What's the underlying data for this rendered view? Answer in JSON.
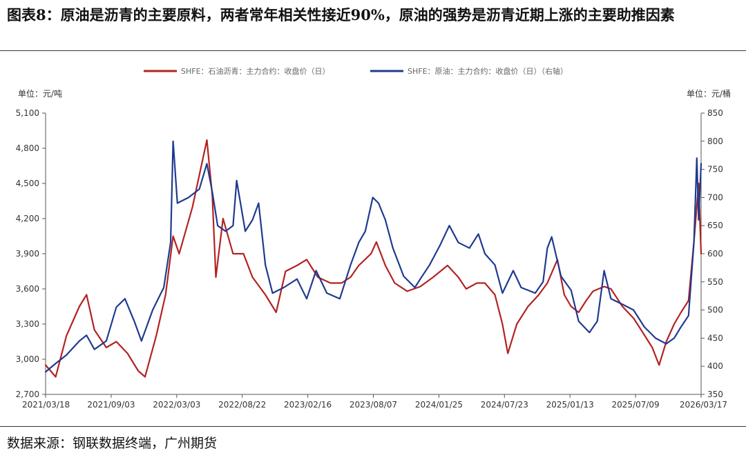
{
  "header": {
    "title": "图表8：原油是沥青的主要原料，两者常年相关性接近90%，原油的强势是沥青近期上涨的主要助推因素"
  },
  "footer": {
    "source": "数据来源：钢联数据终端，广州期货"
  },
  "colors": {
    "asphalt": "#B22222",
    "crude": "#1F3A8F",
    "axis": "#555555"
  },
  "chart_data": {
    "type": "line",
    "title": "",
    "left_axis_unit": "单位：元/吨",
    "right_axis_unit": "单位：元/桶",
    "ylim_left": [
      2700,
      5100
    ],
    "yticks_left": [
      "2,700",
      "3,000",
      "3,300",
      "3,600",
      "3,900",
      "4,200",
      "4,500",
      "4,800",
      "5,100"
    ],
    "ylim_right": [
      350,
      850
    ],
    "yticks_right": [
      "350",
      "400",
      "450",
      "500",
      "550",
      "600",
      "650",
      "700",
      "750",
      "800",
      "850"
    ],
    "xlim": [
      "2021-03-18",
      "2026-03-17"
    ],
    "xticks": [
      "2021/03/18",
      "2021/09/03",
      "2022/03/03",
      "2022/08/22",
      "2023/02/16",
      "2023/08/07",
      "2024/01/25",
      "2024/07/23",
      "2025/01/13",
      "2025/07/09",
      "2026/03/17"
    ],
    "grid": false,
    "legend_position": "top-center",
    "series": [
      {
        "name": "SHFE：石油沥青：主力合约：收盘价（日）",
        "axis": "left",
        "points": [
          [
            "2021-03-18",
            2950
          ],
          [
            "2021-04-15",
            2850
          ],
          [
            "2021-05-15",
            3200
          ],
          [
            "2021-06-20",
            3450
          ],
          [
            "2021-07-10",
            3550
          ],
          [
            "2021-08-01",
            3250
          ],
          [
            "2021-09-03",
            3100
          ],
          [
            "2021-10-01",
            3150
          ],
          [
            "2021-11-01",
            3050
          ],
          [
            "2021-12-01",
            2900
          ],
          [
            "2021-12-20",
            2850
          ],
          [
            "2022-01-20",
            3200
          ],
          [
            "2022-02-15",
            3550
          ],
          [
            "2022-03-08",
            4050
          ],
          [
            "2022-03-25",
            3900
          ],
          [
            "2022-05-01",
            4300
          ],
          [
            "2022-06-10",
            4870
          ],
          [
            "2022-06-25",
            4400
          ],
          [
            "2022-07-05",
            3700
          ],
          [
            "2022-07-25",
            4200
          ],
          [
            "2022-08-22",
            3900
          ],
          [
            "2022-09-20",
            3900
          ],
          [
            "2022-10-15",
            3700
          ],
          [
            "2022-11-20",
            3550
          ],
          [
            "2022-12-20",
            3400
          ],
          [
            "2023-01-15",
            3750
          ],
          [
            "2023-02-16",
            3800
          ],
          [
            "2023-03-15",
            3850
          ],
          [
            "2023-04-15",
            3700
          ],
          [
            "2023-05-20",
            3650
          ],
          [
            "2023-06-20",
            3650
          ],
          [
            "2023-07-15",
            3700
          ],
          [
            "2023-08-07",
            3800
          ],
          [
            "2023-09-10",
            3900
          ],
          [
            "2023-09-25",
            4000
          ],
          [
            "2023-10-20",
            3800
          ],
          [
            "2023-11-15",
            3650
          ],
          [
            "2023-12-20",
            3580
          ],
          [
            "2024-01-25",
            3620
          ],
          [
            "2024-03-01",
            3700
          ],
          [
            "2024-04-10",
            3800
          ],
          [
            "2024-05-10",
            3700
          ],
          [
            "2024-06-01",
            3600
          ],
          [
            "2024-07-01",
            3650
          ],
          [
            "2024-07-23",
            3650
          ],
          [
            "2024-08-20",
            3550
          ],
          [
            "2024-09-10",
            3300
          ],
          [
            "2024-09-25",
            3050
          ],
          [
            "2024-10-20",
            3300
          ],
          [
            "2024-11-20",
            3450
          ],
          [
            "2024-12-20",
            3550
          ],
          [
            "2025-01-13",
            3650
          ],
          [
            "2025-02-10",
            3850
          ],
          [
            "2025-03-01",
            3550
          ],
          [
            "2025-03-20",
            3450
          ],
          [
            "2025-04-10",
            3400
          ],
          [
            "2025-05-01",
            3500
          ],
          [
            "2025-05-20",
            3580
          ],
          [
            "2025-06-20",
            3620
          ],
          [
            "2025-07-09",
            3600
          ],
          [
            "2025-08-10",
            3450
          ],
          [
            "2025-09-10",
            3350
          ],
          [
            "2025-10-01",
            3250
          ],
          [
            "2025-11-01",
            3100
          ],
          [
            "2025-11-20",
            2950
          ],
          [
            "2025-12-10",
            3150
          ],
          [
            "2026-01-01",
            3300
          ],
          [
            "2026-01-20",
            3400
          ],
          [
            "2026-02-10",
            3500
          ],
          [
            "2026-02-25",
            4000
          ],
          [
            "2026-03-10",
            4500
          ],
          [
            "2026-03-17",
            3900
          ]
        ]
      },
      {
        "name": "SHFE：原油：主力合约：收盘价（日）（右轴）",
        "axis": "right",
        "points": [
          [
            "2021-03-18",
            390
          ],
          [
            "2021-04-15",
            405
          ],
          [
            "2021-05-15",
            420
          ],
          [
            "2021-06-20",
            445
          ],
          [
            "2021-07-10",
            455
          ],
          [
            "2021-08-01",
            430
          ],
          [
            "2021-09-03",
            445
          ],
          [
            "2021-10-01",
            505
          ],
          [
            "2021-10-25",
            520
          ],
          [
            "2021-11-20",
            480
          ],
          [
            "2021-12-10",
            445
          ],
          [
            "2022-01-10",
            500
          ],
          [
            "2022-02-10",
            540
          ],
          [
            "2022-03-01",
            620
          ],
          [
            "2022-03-08",
            800
          ],
          [
            "2022-03-20",
            690
          ],
          [
            "2022-04-20",
            700
          ],
          [
            "2022-05-20",
            715
          ],
          [
            "2022-06-10",
            760
          ],
          [
            "2022-06-25",
            710
          ],
          [
            "2022-07-10",
            650
          ],
          [
            "2022-08-01",
            640
          ],
          [
            "2022-08-22",
            650
          ],
          [
            "2022-09-01",
            730
          ],
          [
            "2022-09-25",
            640
          ],
          [
            "2022-10-15",
            660
          ],
          [
            "2022-11-01",
            690
          ],
          [
            "2022-11-20",
            580
          ],
          [
            "2022-12-10",
            530
          ],
          [
            "2023-01-10",
            540
          ],
          [
            "2023-02-16",
            555
          ],
          [
            "2023-03-15",
            520
          ],
          [
            "2023-04-10",
            570
          ],
          [
            "2023-05-10",
            530
          ],
          [
            "2023-06-15",
            520
          ],
          [
            "2023-07-15",
            580
          ],
          [
            "2023-08-07",
            620
          ],
          [
            "2023-08-25",
            640
          ],
          [
            "2023-09-15",
            700
          ],
          [
            "2023-10-01",
            690
          ],
          [
            "2023-10-20",
            660
          ],
          [
            "2023-11-10",
            610
          ],
          [
            "2023-12-10",
            560
          ],
          [
            "2024-01-10",
            540
          ],
          [
            "2024-01-25",
            555
          ],
          [
            "2024-02-20",
            580
          ],
          [
            "2024-03-20",
            615
          ],
          [
            "2024-04-15",
            650
          ],
          [
            "2024-05-10",
            620
          ],
          [
            "2024-06-10",
            610
          ],
          [
            "2024-07-05",
            635
          ],
          [
            "2024-07-23",
            600
          ],
          [
            "2024-08-20",
            580
          ],
          [
            "2024-09-10",
            530
          ],
          [
            "2024-10-10",
            570
          ],
          [
            "2024-11-01",
            540
          ],
          [
            "2024-12-10",
            530
          ],
          [
            "2025-01-01",
            550
          ],
          [
            "2025-01-13",
            610
          ],
          [
            "2025-01-25",
            630
          ],
          [
            "2025-02-20",
            560
          ],
          [
            "2025-03-20",
            535
          ],
          [
            "2025-04-10",
            480
          ],
          [
            "2025-05-10",
            460
          ],
          [
            "2025-06-01",
            480
          ],
          [
            "2025-06-20",
            570
          ],
          [
            "2025-07-09",
            520
          ],
          [
            "2025-08-10",
            510
          ],
          [
            "2025-09-10",
            500
          ],
          [
            "2025-10-10",
            470
          ],
          [
            "2025-11-10",
            450
          ],
          [
            "2025-12-10",
            440
          ],
          [
            "2026-01-01",
            450
          ],
          [
            "2026-01-20",
            470
          ],
          [
            "2026-02-10",
            490
          ],
          [
            "2026-02-25",
            620
          ],
          [
            "2026-03-05",
            770
          ],
          [
            "2026-03-10",
            660
          ],
          [
            "2026-03-17",
            760
          ]
        ]
      }
    ]
  }
}
